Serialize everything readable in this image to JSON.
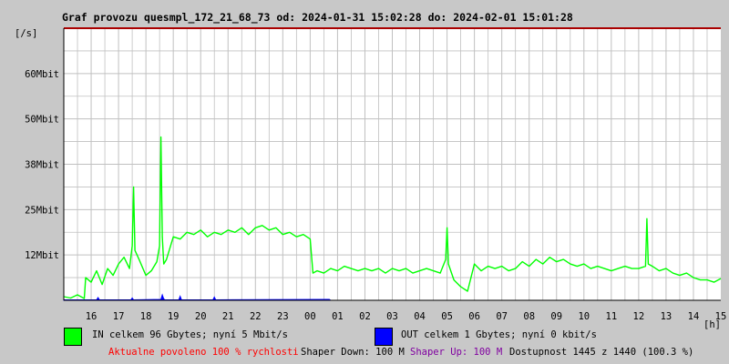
{
  "colors": {
    "background": "#c8c8c8",
    "plot_background": "#ffffff",
    "grid": "#c0c0c0",
    "in_series": "#00ff00",
    "out_series": "#0000ff",
    "top_border": "#aa0000",
    "footer_red": "#ff0000",
    "footer_purple": "#8000a0",
    "footer_black": "#000000"
  },
  "legend": {
    "in_text": "IN celkem 96 Gbytes; nyní 5 Mbit/s",
    "out_text": "OUT celkem 1 Gbytes; nyní 0 kbit/s"
  },
  "footer": {
    "allowed": "Aktualne povoleno 100 % rychlosti",
    "shaper_down": "Shaper Down: 100 M",
    "shaper_up": "Shaper Up: 100 M",
    "availability": "Dostupnost 1445 z 1440 (100.3 %)"
  },
  "chart_data": {
    "type": "area",
    "title": "Graf provozu quesmpl_172_21_68_73 od: 2024-01-31 15:02:28 do: 2024-02-01 15:01:28",
    "ylabel": "[/s]",
    "xlabel": "[h]",
    "x_unit": "hours from 15:00 on 2024-01-31",
    "xlim": [
      0,
      24
    ],
    "ylim": [
      0,
      60
    ],
    "y_ticks": [
      {
        "value": 10,
        "label": "12Mbit"
      },
      {
        "value": 20,
        "label": "25Mbit"
      },
      {
        "value": 30,
        "label": "38Mbit"
      },
      {
        "value": 40,
        "label": "50Mbit"
      },
      {
        "value": 50,
        "label": "60Mbit"
      }
    ],
    "x_ticks": [
      {
        "value": 1,
        "label": "16"
      },
      {
        "value": 2,
        "label": "17"
      },
      {
        "value": 3,
        "label": "18"
      },
      {
        "value": 4,
        "label": "19"
      },
      {
        "value": 5,
        "label": "20"
      },
      {
        "value": 6,
        "label": "21"
      },
      {
        "value": 7,
        "label": "22"
      },
      {
        "value": 8,
        "label": "23"
      },
      {
        "value": 9,
        "label": "00"
      },
      {
        "value": 10,
        "label": "01"
      },
      {
        "value": 11,
        "label": "02"
      },
      {
        "value": 12,
        "label": "03"
      },
      {
        "value": 13,
        "label": "04"
      },
      {
        "value": 14,
        "label": "05"
      },
      {
        "value": 15,
        "label": "06"
      },
      {
        "value": 16,
        "label": "07"
      },
      {
        "value": 17,
        "label": "08"
      },
      {
        "value": 18,
        "label": "09"
      },
      {
        "value": 19,
        "label": "10"
      },
      {
        "value": 20,
        "label": "11"
      },
      {
        "value": 21,
        "label": "12"
      },
      {
        "value": 22,
        "label": "13"
      },
      {
        "value": 23,
        "label": "14"
      },
      {
        "value": 24,
        "label": "15"
      }
    ],
    "grid": true,
    "series": [
      {
        "name": "IN",
        "kind": "line",
        "x": [
          0.0,
          0.25,
          0.5,
          0.75,
          0.8,
          1.0,
          1.2,
          1.4,
          1.6,
          1.8,
          2.0,
          2.2,
          2.4,
          2.5,
          2.55,
          2.6,
          2.75,
          3.0,
          3.2,
          3.4,
          3.5,
          3.55,
          3.6,
          3.65,
          3.75,
          4.0,
          4.25,
          4.5,
          4.75,
          5.0,
          5.25,
          5.5,
          5.75,
          6.0,
          6.25,
          6.5,
          6.75,
          7.0,
          7.25,
          7.5,
          7.75,
          8.0,
          8.25,
          8.5,
          8.75,
          9.0,
          9.1,
          9.25,
          9.5,
          9.75,
          10.0,
          10.25,
          10.5,
          10.75,
          11.0,
          11.25,
          11.5,
          11.75,
          12.0,
          12.25,
          12.5,
          12.75,
          13.0,
          13.25,
          13.5,
          13.75,
          13.95,
          14.0,
          14.05,
          14.25,
          14.5,
          14.75,
          15.0,
          15.25,
          15.5,
          15.75,
          16.0,
          16.25,
          16.5,
          16.75,
          17.0,
          17.25,
          17.5,
          17.75,
          18.0,
          18.25,
          18.5,
          18.75,
          19.0,
          19.25,
          19.5,
          19.75,
          20.0,
          20.25,
          20.5,
          20.75,
          21.0,
          21.25,
          21.3,
          21.35,
          21.5,
          21.75,
          22.0,
          22.25,
          22.5,
          22.75,
          23.0,
          23.25,
          23.5,
          23.75,
          24.0
        ],
        "y": [
          0.8,
          0.5,
          1.2,
          0.4,
          5.0,
          4.0,
          6.5,
          3.5,
          7.0,
          5.5,
          8.0,
          9.5,
          7.0,
          12.0,
          25.0,
          11.0,
          9.0,
          5.5,
          6.5,
          8.5,
          12.0,
          36.0,
          14.0,
          8.0,
          9.0,
          14.0,
          13.5,
          15.0,
          14.5,
          15.5,
          14.0,
          15.0,
          14.5,
          15.5,
          15.0,
          16.0,
          14.5,
          16.0,
          16.5,
          15.5,
          16.0,
          14.5,
          15.0,
          14.0,
          14.5,
          13.5,
          6.0,
          6.5,
          6.0,
          7.0,
          6.5,
          7.5,
          7.0,
          6.5,
          7.0,
          6.5,
          7.0,
          6.0,
          7.0,
          6.5,
          7.0,
          6.0,
          6.5,
          7.0,
          6.5,
          6.0,
          9.0,
          16.0,
          8.0,
          4.5,
          3.0,
          2.0,
          8.0,
          6.5,
          7.5,
          7.0,
          7.5,
          6.5,
          7.0,
          8.5,
          7.5,
          9.0,
          8.0,
          9.5,
          8.5,
          9.0,
          8.0,
          7.5,
          8.0,
          7.0,
          7.5,
          7.0,
          6.5,
          7.0,
          7.5,
          7.0,
          7.0,
          7.5,
          18.0,
          8.0,
          7.5,
          6.5,
          7.0,
          6.0,
          5.5,
          6.0,
          5.0,
          4.5,
          4.5,
          4.0,
          4.8
        ]
      },
      {
        "name": "OUT",
        "kind": "area",
        "x": [
          0.0,
          1.2,
          1.25,
          1.3,
          2.45,
          2.5,
          2.55,
          3.55,
          3.6,
          3.65,
          3.7,
          4.2,
          4.25,
          4.3,
          5.45,
          5.5,
          5.55,
          9.7,
          9.75,
          24.0
        ],
        "y": [
          0.1,
          0.1,
          0.6,
          0.1,
          0.1,
          0.5,
          0.1,
          0.2,
          1.2,
          0.3,
          0.1,
          0.1,
          0.9,
          0.1,
          0.1,
          0.7,
          0.1,
          0.2,
          0,
          0
        ]
      }
    ]
  }
}
